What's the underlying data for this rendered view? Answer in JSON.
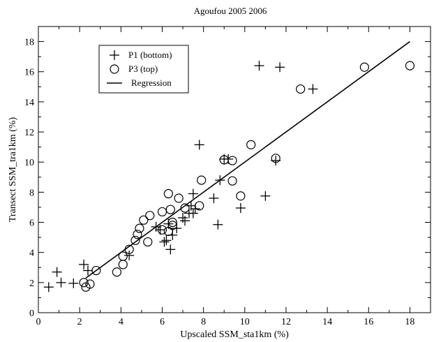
{
  "chart_data": {
    "type": "scatter",
    "title": "Agoufou 2005 2006",
    "xlabel": "Upscaled SSM_sta1km (%)",
    "ylabel": "Transect SSM_tra1km (%)",
    "xlim": [
      0,
      19
    ],
    "ylim": [
      0,
      19
    ],
    "xticks": [
      0,
      2,
      4,
      6,
      8,
      10,
      12,
      14,
      16,
      18
    ],
    "yticks": [
      0,
      2,
      4,
      6,
      8,
      10,
      12,
      14,
      16,
      18
    ],
    "grid": false,
    "legend_position": "top-left",
    "series": [
      {
        "name": "P1 (bottom)",
        "marker": "plus",
        "points": [
          [
            0.5,
            1.7
          ],
          [
            0.9,
            2.7
          ],
          [
            1.1,
            2.0
          ],
          [
            1.7,
            1.95
          ],
          [
            2.2,
            3.2
          ],
          [
            2.4,
            2.8
          ],
          [
            4.4,
            3.8
          ],
          [
            5.7,
            5.7
          ],
          [
            5.9,
            5.5
          ],
          [
            6.1,
            4.7
          ],
          [
            6.2,
            4.8
          ],
          [
            6.3,
            5.9
          ],
          [
            6.4,
            4.2
          ],
          [
            6.5,
            5.15
          ],
          [
            6.7,
            5.6
          ],
          [
            7.0,
            6.3
          ],
          [
            7.1,
            6.1
          ],
          [
            7.3,
            6.6
          ],
          [
            7.4,
            7.1
          ],
          [
            7.5,
            6.6
          ],
          [
            7.5,
            7.9
          ],
          [
            7.6,
            6.9
          ],
          [
            7.8,
            11.15
          ],
          [
            8.5,
            7.6
          ],
          [
            8.7,
            5.85
          ],
          [
            8.8,
            8.8
          ],
          [
            9.0,
            10.2
          ],
          [
            9.2,
            10.2
          ],
          [
            9.8,
            6.95
          ],
          [
            11.0,
            7.75
          ],
          [
            11.5,
            10.1
          ],
          [
            10.7,
            16.4
          ],
          [
            11.7,
            16.3
          ],
          [
            13.3,
            14.85
          ]
        ]
      },
      {
        "name": "P3 (top)",
        "marker": "circle",
        "points": [
          [
            2.2,
            2.0
          ],
          [
            2.3,
            1.7
          ],
          [
            2.5,
            1.9
          ],
          [
            2.8,
            2.8
          ],
          [
            3.8,
            2.7
          ],
          [
            4.1,
            3.2
          ],
          [
            4.1,
            3.75
          ],
          [
            4.4,
            4.2
          ],
          [
            4.7,
            4.8
          ],
          [
            4.8,
            5.2
          ],
          [
            4.9,
            5.6
          ],
          [
            5.1,
            6.15
          ],
          [
            5.3,
            4.7
          ],
          [
            5.4,
            6.45
          ],
          [
            6.0,
            5.5
          ],
          [
            6.0,
            6.7
          ],
          [
            6.3,
            5.4
          ],
          [
            6.3,
            7.9
          ],
          [
            6.4,
            6.85
          ],
          [
            6.5,
            5.8
          ],
          [
            6.5,
            6.0
          ],
          [
            6.8,
            7.6
          ],
          [
            7.1,
            6.95
          ],
          [
            7.8,
            7.1
          ],
          [
            7.9,
            8.8
          ],
          [
            9.0,
            10.15
          ],
          [
            9.4,
            10.1
          ],
          [
            9.4,
            8.75
          ],
          [
            9.8,
            7.75
          ],
          [
            10.3,
            11.15
          ],
          [
            11.5,
            10.25
          ],
          [
            12.7,
            14.85
          ],
          [
            15.8,
            16.3
          ],
          [
            18.0,
            16.4
          ]
        ]
      }
    ],
    "regression": {
      "name": "Regression",
      "points": [
        [
          2.3,
          2.3
        ],
        [
          18.0,
          18.0
        ]
      ]
    }
  }
}
